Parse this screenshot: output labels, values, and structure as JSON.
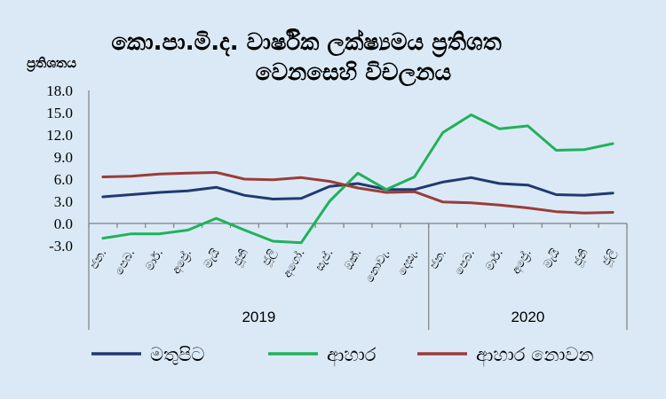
{
  "chart_data": {
    "type": "line",
    "title_lines": [
      "කො.පා.මි.ද. වාර්ෂික ලක්ෂ්‍යමය ප්‍රතිශත",
      "වෙනසෙහි විචලනය"
    ],
    "ylabel": "ප්‍රතිශතය",
    "ylim": [
      -3.0,
      18.0
    ],
    "yticks": [
      "18.0",
      "15.0",
      "12.0",
      "9.0",
      "6.0",
      "3.0",
      "0.0",
      "-3.0"
    ],
    "ytick_values": [
      18,
      15,
      12,
      9,
      6,
      3,
      0,
      -3
    ],
    "categories": [
      "ජන.",
      "පෙබ.",
      "මාර්.",
      "අප්‍රේ.",
      "මැයි",
      "ජූනි",
      "ජූලි",
      "අගෝ.",
      "සැප්.",
      "ඔක්.",
      "නොවැ.",
      "දෙසැ.",
      "ජන.",
      "පෙබ.",
      "මාර්.",
      "අප්‍රේ.",
      "මැයි",
      "ජූනි",
      "ජූලි"
    ],
    "groups": [
      {
        "label": "2019",
        "start": 0,
        "end": 11
      },
      {
        "label": "2020",
        "start": 12,
        "end": 18
      }
    ],
    "series": [
      {
        "name": "මතුපිට",
        "color": "#1f3a70",
        "values": [
          3.6,
          3.9,
          4.2,
          4.4,
          4.9,
          3.8,
          3.3,
          3.4,
          5.0,
          5.4,
          4.6,
          4.6,
          5.6,
          6.2,
          5.4,
          5.2,
          3.9,
          3.8,
          4.1
        ]
      },
      {
        "name": "ආහාර",
        "color": "#1fb25a",
        "values": [
          -2.0,
          -1.4,
          -1.4,
          -0.9,
          0.7,
          -0.9,
          -2.4,
          -2.6,
          3.0,
          6.8,
          4.6,
          6.3,
          12.3,
          14.7,
          12.8,
          13.2,
          9.9,
          10.0,
          10.8
        ]
      },
      {
        "name": "ආහාර නොවන",
        "color": "#9b3c38",
        "values": [
          6.3,
          6.4,
          6.7,
          6.8,
          6.9,
          6.0,
          5.9,
          6.2,
          5.7,
          4.8,
          4.2,
          4.3,
          2.9,
          2.8,
          2.5,
          2.1,
          1.6,
          1.4,
          1.5
        ]
      }
    ],
    "legend_position": "bottom"
  }
}
